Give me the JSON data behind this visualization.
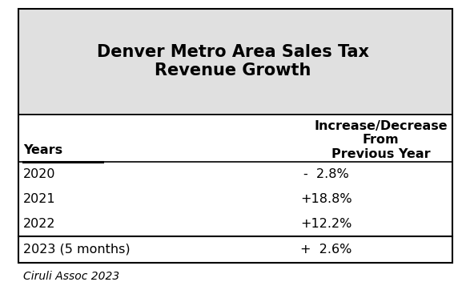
{
  "title": "Denver Metro Area Sales Tax\nRevenue Growth",
  "title_bg_color": "#e0e0e0",
  "col1_header": "Years",
  "col2_header": "Increase/Decrease\nFrom\nPrevious Year",
  "rows": [
    [
      "2020",
      "-  2.8%"
    ],
    [
      "2021",
      "+18.8%"
    ],
    [
      "2022",
      "+12.2%"
    ],
    [
      "2023 (5 months)",
      "+  2.6%"
    ]
  ],
  "footer": "Ciruli Assoc 2023",
  "bg_color": "#ffffff",
  "title_bg_color_hex": "#e0e0e0",
  "title_fontsize": 15,
  "header_fontsize": 11.5,
  "cell_fontsize": 11.5,
  "footer_fontsize": 10
}
